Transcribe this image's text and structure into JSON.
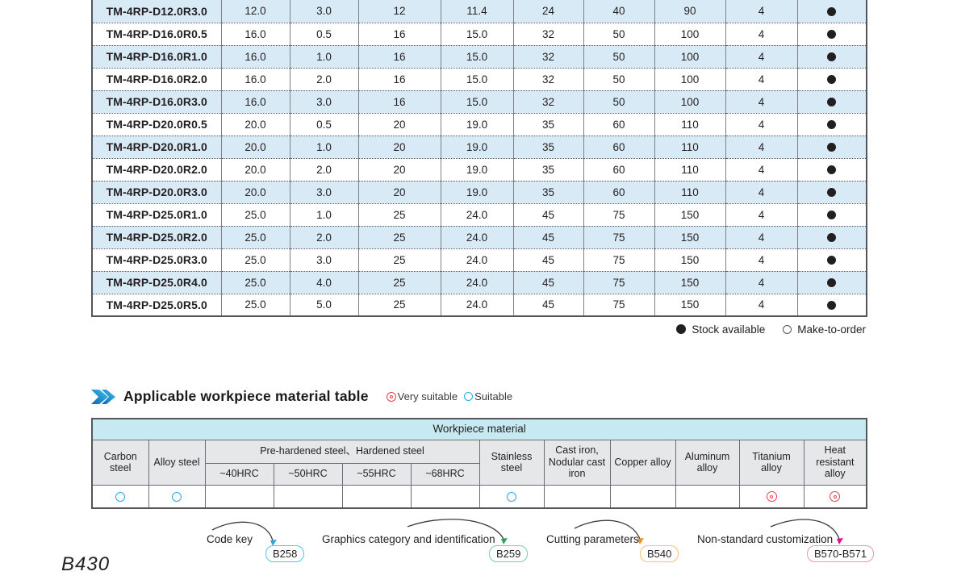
{
  "product_table": {
    "rows": [
      {
        "model": "TM-4RP-D12.0R3.0",
        "values": [
          "12.0",
          "3.0",
          "12",
          "11.4",
          "24",
          "40",
          "90",
          "4"
        ],
        "stock": "stock-available"
      },
      {
        "model": "TM-4RP-D16.0R0.5",
        "values": [
          "16.0",
          "0.5",
          "16",
          "15.0",
          "32",
          "50",
          "100",
          "4"
        ],
        "stock": "stock-available"
      },
      {
        "model": "TM-4RP-D16.0R1.0",
        "values": [
          "16.0",
          "1.0",
          "16",
          "15.0",
          "32",
          "50",
          "100",
          "4"
        ],
        "stock": "stock-available"
      },
      {
        "model": "TM-4RP-D16.0R2.0",
        "values": [
          "16.0",
          "2.0",
          "16",
          "15.0",
          "32",
          "50",
          "100",
          "4"
        ],
        "stock": "stock-available"
      },
      {
        "model": "TM-4RP-D16.0R3.0",
        "values": [
          "16.0",
          "3.0",
          "16",
          "15.0",
          "32",
          "50",
          "100",
          "4"
        ],
        "stock": "stock-available"
      },
      {
        "model": "TM-4RP-D20.0R0.5",
        "values": [
          "20.0",
          "0.5",
          "20",
          "19.0",
          "35",
          "60",
          "110",
          "4"
        ],
        "stock": "stock-available"
      },
      {
        "model": "TM-4RP-D20.0R1.0",
        "values": [
          "20.0",
          "1.0",
          "20",
          "19.0",
          "35",
          "60",
          "110",
          "4"
        ],
        "stock": "stock-available"
      },
      {
        "model": "TM-4RP-D20.0R2.0",
        "values": [
          "20.0",
          "2.0",
          "20",
          "19.0",
          "35",
          "60",
          "110",
          "4"
        ],
        "stock": "stock-available"
      },
      {
        "model": "TM-4RP-D20.0R3.0",
        "values": [
          "20.0",
          "3.0",
          "20",
          "19.0",
          "35",
          "60",
          "110",
          "4"
        ],
        "stock": "stock-available"
      },
      {
        "model": "TM-4RP-D25.0R1.0",
        "values": [
          "25.0",
          "1.0",
          "25",
          "24.0",
          "45",
          "75",
          "150",
          "4"
        ],
        "stock": "stock-available"
      },
      {
        "model": "TM-4RP-D25.0R2.0",
        "values": [
          "25.0",
          "2.0",
          "25",
          "24.0",
          "45",
          "75",
          "150",
          "4"
        ],
        "stock": "stock-available"
      },
      {
        "model": "TM-4RP-D25.0R3.0",
        "values": [
          "25.0",
          "3.0",
          "25",
          "24.0",
          "45",
          "75",
          "150",
          "4"
        ],
        "stock": "stock-available"
      },
      {
        "model": "TM-4RP-D25.0R4.0",
        "values": [
          "25.0",
          "4.0",
          "25",
          "24.0",
          "45",
          "75",
          "150",
          "4"
        ],
        "stock": "stock-available"
      },
      {
        "model": "TM-4RP-D25.0R5.0",
        "values": [
          "25.0",
          "5.0",
          "25",
          "24.0",
          "45",
          "75",
          "150",
          "4"
        ],
        "stock": "stock-available"
      }
    ]
  },
  "stock_legend": {
    "stock_available": "Stock available",
    "make_to_order": "Make-to-order"
  },
  "material_section": {
    "title": "Applicable workpiece material table",
    "very_suitable_label": "Very suitable",
    "suitable_label": "Suitable",
    "table": {
      "header": "Workpiece material",
      "group_header": "Pre-hardened steel、Hardened steel",
      "columns": {
        "carbon": "Carbon steel",
        "alloy": "Alloy steel",
        "hrc40": "~40HRC",
        "hrc50": "~50HRC",
        "hrc55": "~55HRC",
        "hrc68": "~68HRC",
        "stainless": "Stainless steel",
        "cast_iron": "Cast iron, Nodular cast iron",
        "copper": "Copper alloy",
        "aluminum": "Aluminum alloy",
        "titanium": "Titanium alloy",
        "heat_resistant": "Heat resistant alloy"
      },
      "ratings": [
        "suitable",
        "suitable",
        "",
        "",
        "",
        "",
        "suitable",
        "",
        "",
        "",
        "very_suitable",
        "very_suitable"
      ]
    }
  },
  "footer": {
    "links": [
      {
        "label": "Code key",
        "badge": "B258",
        "color": "#53c6ea"
      },
      {
        "label": "Graphics category and identification",
        "badge": "B259",
        "color": "#77d0a1"
      },
      {
        "label": "Cutting parameters",
        "badge": "B540",
        "color": "#f6c179"
      },
      {
        "label": "Non-standard customization",
        "badge": "B570-B571",
        "color": "#f293b7"
      }
    ],
    "page_number": "B430"
  },
  "colors": {
    "row_highlight": "#d9eaf7",
    "workpiece_header": "#c6e9f2",
    "column_header": "#e6e7e8",
    "text": "#231f20",
    "very_suitable": "#e8414f",
    "suitable": "#29a9e1",
    "arrow_blue": "#2aa9e0",
    "arrow_green": "#2aa45c",
    "arrow_orange": "#f68b1f",
    "arrow_magenta": "#ec0a8c"
  }
}
